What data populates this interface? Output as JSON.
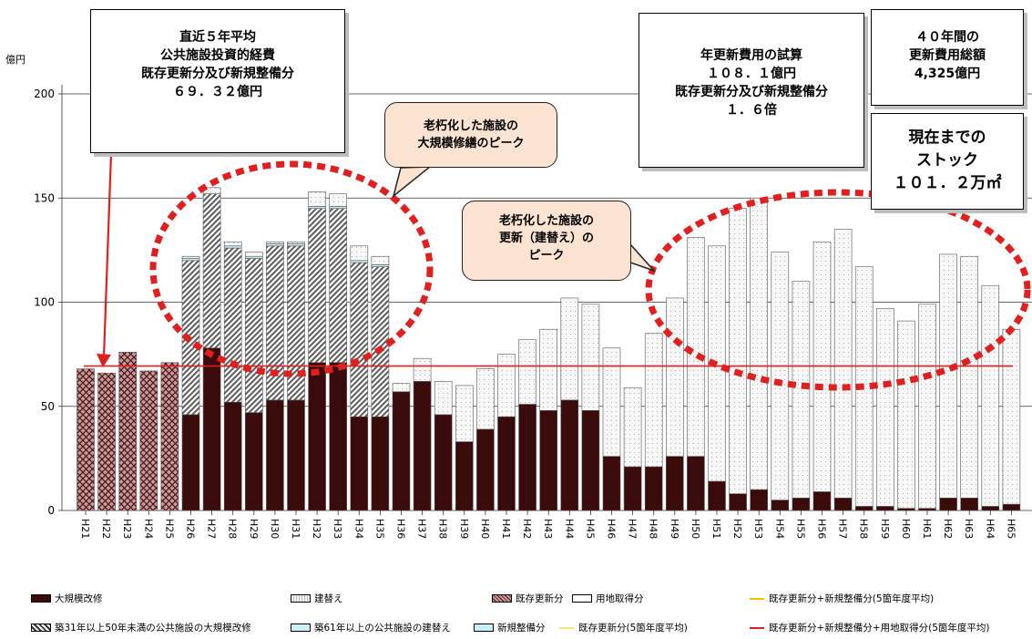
{
  "unit_label": "億円",
  "boxes": {
    "avg5": [
      "直近５年平均",
      "公共施設投資的経費",
      "既存更新分及び新規整備分",
      "６９．３２億円"
    ],
    "trial": [
      "年更新費用の試算",
      "１０８．１億円",
      "既存更新分及び新規整備分",
      "１．６倍"
    ],
    "total40": [
      "４０年間の",
      "更新費用総額",
      "4,325億円"
    ],
    "stock": [
      "現在までの",
      "ストック",
      "１０１．２万㎡"
    ]
  },
  "callouts": {
    "repair_peak": [
      "老朽化した施設の",
      "大規模修繕のピーク"
    ],
    "renew_peak": [
      "老朽化した施設の",
      "更新（建替え）の",
      "ピーク"
    ]
  },
  "colors": {
    "repair": "#3b0a0a",
    "existing": "#b87a7a",
    "rebuild": "#f5f5f5",
    "hatch": "#6a6a6a",
    "cyan": "#cdeff5",
    "avg_line": "#e02020",
    "arrow": "#e02020",
    "ellipse": "#e02020"
  },
  "legend": [
    {
      "label": "大規模改修",
      "kind": "repair"
    },
    {
      "label": "建替え",
      "kind": "rebuild"
    },
    {
      "label": "既存更新分",
      "kind": "existing"
    },
    {
      "label": "用地取得分",
      "kind": "land"
    },
    {
      "label": "既存更新分+新規整備分(5箇年度平均)",
      "kind": "line",
      "color": "#f2c400"
    },
    {
      "label": "築31年以上50年未満の公共施設の大規模改修",
      "kind": "hatch"
    },
    {
      "label": "築61年以上の公共施設の建替え",
      "kind": "cyan"
    },
    {
      "label": "新規整備分",
      "kind": "cyan2"
    },
    {
      "label": "既存更新分(5箇年度平均)",
      "kind": "line",
      "color": "#f7e27a"
    },
    {
      "label": "既存更新分+新規整備分+用地取得分(5箇年度平均)",
      "kind": "line",
      "color": "#e02020"
    }
  ],
  "chart_data": {
    "type": "bar",
    "stacked": true,
    "ylabel": "億円",
    "ylim": [
      0,
      200
    ],
    "yticks": [
      0,
      50,
      100,
      150,
      200
    ],
    "grid": true,
    "legend_position": "bottom",
    "categories": [
      "H21",
      "H22",
      "H23",
      "H24",
      "H25",
      "H26",
      "H27",
      "H28",
      "H29",
      "H30",
      "H31",
      "H32",
      "H33",
      "H34",
      "H35",
      "H36",
      "H37",
      "H38",
      "H39",
      "H40",
      "H41",
      "H42",
      "H43",
      "H44",
      "H45",
      "H46",
      "H47",
      "H48",
      "H49",
      "H50",
      "H51",
      "H52",
      "H53",
      "H54",
      "H55",
      "H56",
      "H57",
      "H58",
      "H59",
      "H60",
      "H61",
      "H62",
      "H63",
      "H64",
      "H65"
    ],
    "average_line": 69.32,
    "series": [
      {
        "name": "既存更新分",
        "values": [
          68,
          66,
          76,
          67,
          71,
          0,
          0,
          0,
          0,
          0,
          0,
          0,
          0,
          0,
          0,
          0,
          0,
          0,
          0,
          0,
          0,
          0,
          0,
          0,
          0,
          0,
          0,
          0,
          0,
          0,
          0,
          0,
          0,
          0,
          0,
          0,
          0,
          0,
          0,
          0,
          0,
          0,
          0,
          0,
          0
        ]
      },
      {
        "name": "大規模改修",
        "values": [
          0,
          0,
          0,
          0,
          0,
          46,
          78,
          52,
          47,
          53,
          53,
          71,
          71,
          45,
          45,
          57,
          62,
          46,
          33,
          39,
          45,
          51,
          48,
          53,
          48,
          26,
          21,
          21,
          26,
          26,
          14,
          8,
          10,
          5,
          6,
          9,
          6,
          2,
          2,
          1,
          1,
          6,
          6,
          2,
          3
        ]
      },
      {
        "name": "築31年以上50年未満の公共施設の大規模改修",
        "values": [
          0,
          0,
          0,
          0,
          0,
          74,
          74,
          74,
          74,
          74,
          74,
          74,
          74,
          74,
          72,
          0,
          0,
          0,
          0,
          0,
          0,
          0,
          0,
          0,
          0,
          0,
          0,
          0,
          0,
          0,
          0,
          0,
          0,
          0,
          0,
          0,
          0,
          0,
          0,
          0,
          0,
          0,
          0,
          0,
          0
        ]
      },
      {
        "name": "築61年以上の公共施設の建替え",
        "values": [
          0,
          0,
          0,
          0,
          0,
          1,
          0,
          1,
          1,
          1,
          1,
          1,
          1,
          1,
          1,
          0,
          0,
          0,
          0,
          0,
          0,
          0,
          0,
          0,
          0,
          0,
          0,
          0,
          0,
          0,
          0,
          0,
          0,
          0,
          0,
          0,
          0,
          0,
          0,
          0,
          0,
          0,
          0,
          0,
          0
        ]
      },
      {
        "name": "建替え",
        "values": [
          0,
          0,
          0,
          0,
          0,
          1,
          3,
          2,
          2,
          1,
          1,
          7,
          6,
          7,
          4,
          4,
          11,
          16,
          27,
          29,
          30,
          31,
          39,
          49,
          51,
          52,
          38,
          64,
          76,
          105,
          113,
          137,
          140,
          119,
          104,
          120,
          129,
          115,
          95,
          90,
          98,
          117,
          116,
          106,
          84
        ]
      }
    ]
  }
}
